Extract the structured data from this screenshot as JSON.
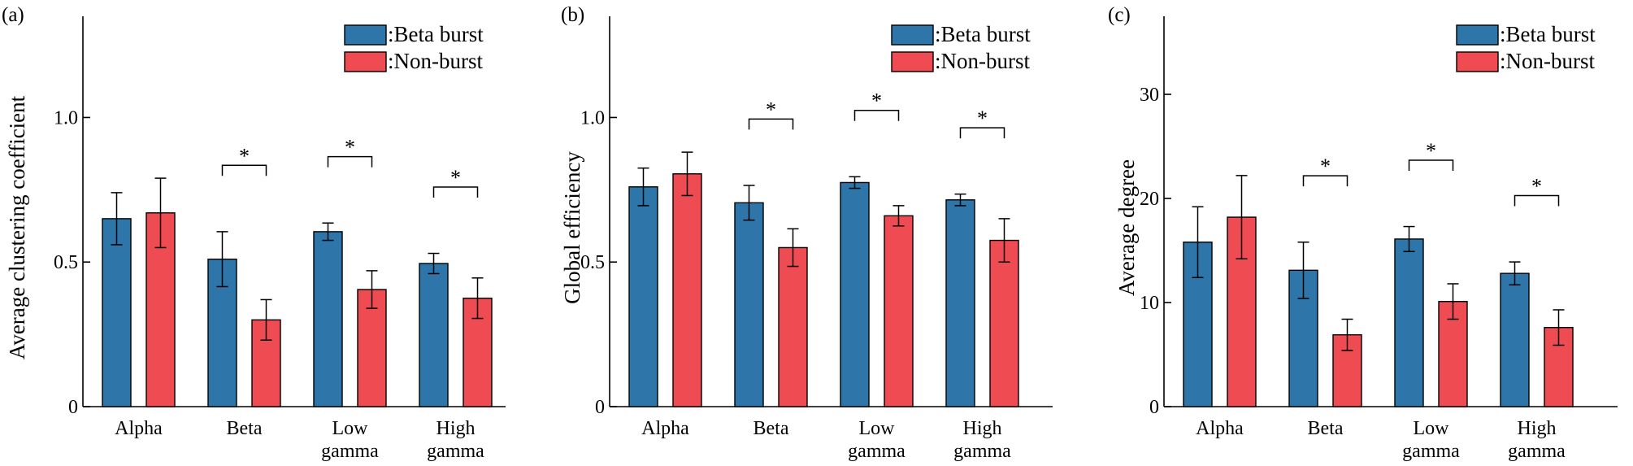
{
  "colors": {
    "beta_burst": "#2e75a9",
    "non_burst": "#ee4b52"
  },
  "chart_data": [
    {
      "type": "bar",
      "panel_label": "(a)",
      "ylabel": "Average clustering coefficient",
      "categories": [
        [
          "Alpha"
        ],
        [
          "Beta"
        ],
        [
          "Low",
          "gamma"
        ],
        [
          "High",
          "gamma"
        ]
      ],
      "ylim": [
        0,
        1.35
      ],
      "yticks": [
        0,
        0.5,
        1.0
      ],
      "ytick_labels": [
        "0",
        "0.5",
        "1.0"
      ],
      "series": [
        {
          "name": ":Beta burst",
          "color_key": "beta_burst",
          "values": [
            0.65,
            0.51,
            0.605,
            0.495
          ],
          "errors": [
            0.09,
            0.095,
            0.03,
            0.035
          ]
        },
        {
          "name": ":Non-burst",
          "color_key": "non_burst",
          "values": [
            0.67,
            0.3,
            0.405,
            0.375
          ],
          "errors": [
            0.12,
            0.07,
            0.065,
            0.07
          ]
        }
      ],
      "significance": [
        "",
        "*",
        "*",
        "*"
      ],
      "legend_position": "top-right",
      "grid": false
    },
    {
      "type": "bar",
      "panel_label": "(b)",
      "ylabel": "Global efficiency",
      "categories": [
        [
          "Alpha"
        ],
        [
          "Beta"
        ],
        [
          "Low",
          "gamma"
        ],
        [
          "High",
          "gamma"
        ]
      ],
      "ylim": [
        0,
        1.35
      ],
      "yticks": [
        0,
        0.5,
        1.0
      ],
      "ytick_labels": [
        "0",
        "0.5",
        "1.0"
      ],
      "series": [
        {
          "name": ":Beta burst",
          "color_key": "beta_burst",
          "values": [
            0.76,
            0.705,
            0.775,
            0.715
          ],
          "errors": [
            0.065,
            0.06,
            0.02,
            0.02
          ]
        },
        {
          "name": ":Non-burst",
          "color_key": "non_burst",
          "values": [
            0.805,
            0.55,
            0.66,
            0.575
          ],
          "errors": [
            0.075,
            0.065,
            0.035,
            0.075
          ]
        }
      ],
      "significance": [
        "",
        "*",
        "*",
        "*"
      ],
      "legend_position": "top-right",
      "grid": false
    },
    {
      "type": "bar",
      "panel_label": "(c)",
      "ylabel": "Average degree",
      "categories": [
        [
          "Alpha"
        ],
        [
          "Beta"
        ],
        [
          "Low",
          "gamma"
        ],
        [
          "High",
          "gamma"
        ]
      ],
      "ylim": [
        0,
        37.5
      ],
      "yticks": [
        0,
        10,
        20,
        30
      ],
      "ytick_labels": [
        "0",
        "10",
        "20",
        "30"
      ],
      "series": [
        {
          "name": ":Beta burst",
          "color_key": "beta_burst",
          "values": [
            15.8,
            13.1,
            16.1,
            12.8
          ],
          "errors": [
            3.4,
            2.7,
            1.2,
            1.1
          ]
        },
        {
          "name": ":Non-burst",
          "color_key": "non_burst",
          "values": [
            18.2,
            6.9,
            10.1,
            7.6
          ],
          "errors": [
            4.0,
            1.5,
            1.7,
            1.7
          ]
        }
      ],
      "significance": [
        "",
        "*",
        "*",
        "*"
      ],
      "legend_position": "top-right",
      "grid": false
    }
  ]
}
